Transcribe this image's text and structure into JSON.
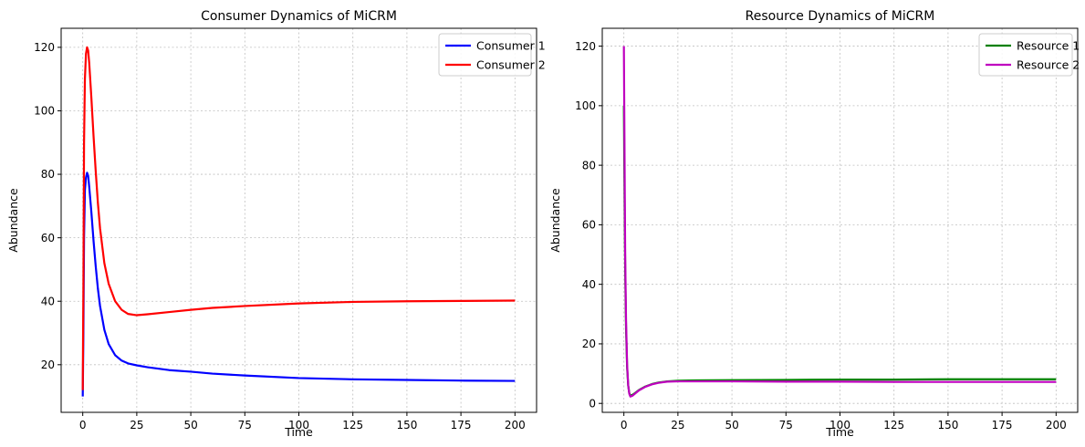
{
  "chart_data": [
    {
      "type": "line",
      "title": "Consumer Dynamics of MiCRM",
      "xlabel": "Time",
      "ylabel": "Abundance",
      "xlim": [
        -10,
        210
      ],
      "ylim": [
        5,
        126
      ],
      "xticks": [
        0,
        25,
        50,
        75,
        100,
        125,
        150,
        175,
        200
      ],
      "yticks": [
        20,
        40,
        60,
        80,
        100,
        120
      ],
      "grid": true,
      "legend": "top-right",
      "series": [
        {
          "name": "Consumer 1",
          "color": "#0000ff",
          "x": [
            0,
            0.3,
            0.6,
            1,
            1.5,
            2,
            2.5,
            3,
            4,
            5,
            6,
            7,
            8,
            10,
            12,
            15,
            18,
            21,
            25,
            30,
            40,
            50,
            60,
            75,
            100,
            125,
            150,
            175,
            200
          ],
          "y": [
            10,
            30,
            60,
            75,
            79,
            80.5,
            79.5,
            76,
            68,
            59,
            51,
            44,
            38.5,
            31,
            26.5,
            23,
            21.3,
            20.4,
            19.8,
            19.2,
            18.3,
            17.8,
            17.2,
            16.6,
            15.8,
            15.4,
            15.2,
            15.0,
            14.9
          ]
        },
        {
          "name": "Consumer 2",
          "color": "#ff0000",
          "x": [
            0,
            0.3,
            0.6,
            1,
            1.5,
            2,
            2.5,
            3,
            4,
            5,
            6,
            7,
            8,
            10,
            12,
            15,
            18,
            21,
            25,
            30,
            40,
            50,
            60,
            75,
            100,
            125,
            150,
            175,
            200
          ],
          "y": [
            12,
            45,
            90,
            110,
            118,
            120,
            119,
            115,
            104,
            92,
            81,
            71,
            63,
            52,
            45.5,
            40,
            37.3,
            36,
            35.6,
            35.9,
            36.6,
            37.3,
            37.9,
            38.5,
            39.3,
            39.8,
            40.0,
            40.1,
            40.2
          ]
        }
      ]
    },
    {
      "type": "line",
      "title": "Resource Dynamics of MiCRM",
      "xlabel": "Time",
      "ylabel": "Abundance",
      "xlim": [
        -10,
        210
      ],
      "ylim": [
        -3,
        126
      ],
      "xticks": [
        0,
        25,
        50,
        75,
        100,
        125,
        150,
        175,
        200
      ],
      "yticks": [
        0,
        20,
        40,
        60,
        80,
        100,
        120
      ],
      "grid": true,
      "legend": "top-right",
      "series": [
        {
          "name": "Resource 1",
          "color": "#008000",
          "x": [
            0,
            0.3,
            0.6,
            1,
            1.5,
            2,
            2.5,
            3,
            4,
            5,
            7,
            10,
            13,
            16,
            20,
            25,
            30,
            50,
            75,
            100,
            125,
            150,
            175,
            200
          ],
          "y": [
            100,
            70,
            45,
            25,
            12,
            6,
            3.5,
            2.6,
            2.9,
            3.4,
            4.5,
            5.7,
            6.5,
            7.0,
            7.4,
            7.6,
            7.7,
            7.8,
            7.9,
            8.0,
            8.0,
            8.1,
            8.1,
            8.1
          ]
        },
        {
          "name": "Resource 2",
          "color": "#bf00bf",
          "x": [
            0,
            0.3,
            0.6,
            1,
            1.5,
            2,
            2.5,
            3,
            4,
            5,
            7,
            10,
            13,
            16,
            20,
            25,
            30,
            50,
            75,
            100,
            125,
            150,
            175,
            200
          ],
          "y": [
            120,
            85,
            50,
            28,
            13,
            6,
            3.2,
            2.3,
            2.6,
            3.2,
            4.4,
            5.6,
            6.4,
            6.9,
            7.3,
            7.4,
            7.4,
            7.4,
            7.3,
            7.3,
            7.2,
            7.2,
            7.2,
            7.2
          ]
        }
      ]
    }
  ]
}
